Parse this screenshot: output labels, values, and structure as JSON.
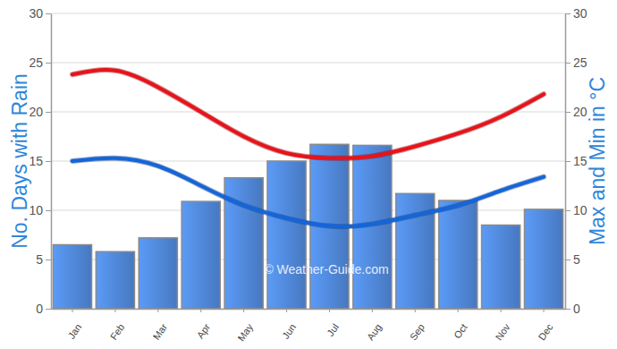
{
  "chart_data": {
    "type": "bar",
    "y_label": "No. Days with Rain",
    "y2_label": "Max and Min in °C",
    "annotations": [
      "© Weather-Guide.com"
    ],
    "categories": [
      "Jan",
      "Feb",
      "Mar",
      "Apr",
      "May",
      "Jun",
      "Jul",
      "Aug",
      "Sep",
      "Oct",
      "Nov",
      "Dec"
    ],
    "series": [
      {
        "type": "bar",
        "color": "#4f86d6",
        "values": [
          6.5,
          5.8,
          7.2,
          10.9,
          13.3,
          15.0,
          16.7,
          16.6,
          11.7,
          11.0,
          8.5,
          10.1
        ]
      },
      {
        "type": "line",
        "color": "#e8131a",
        "axis": "y2",
        "values": [
          23.8,
          24.2,
          22.5,
          20.0,
          17.5,
          15.8,
          15.3,
          15.5,
          16.5,
          17.8,
          19.5,
          21.8
        ]
      },
      {
        "type": "line",
        "color": "#1565d8",
        "axis": "y2",
        "values": [
          15.0,
          15.3,
          14.5,
          12.5,
          10.5,
          9.2,
          8.4,
          8.6,
          9.5,
          10.5,
          12.0,
          13.4
        ]
      }
    ],
    "ylim": [
      0,
      30
    ],
    "yticks": [
      0,
      5,
      10,
      15,
      20,
      25,
      30
    ],
    "y2lim": [
      0,
      30
    ],
    "y2ticks": [
      0,
      5,
      10,
      15,
      20,
      25,
      30
    ],
    "grid": true
  }
}
